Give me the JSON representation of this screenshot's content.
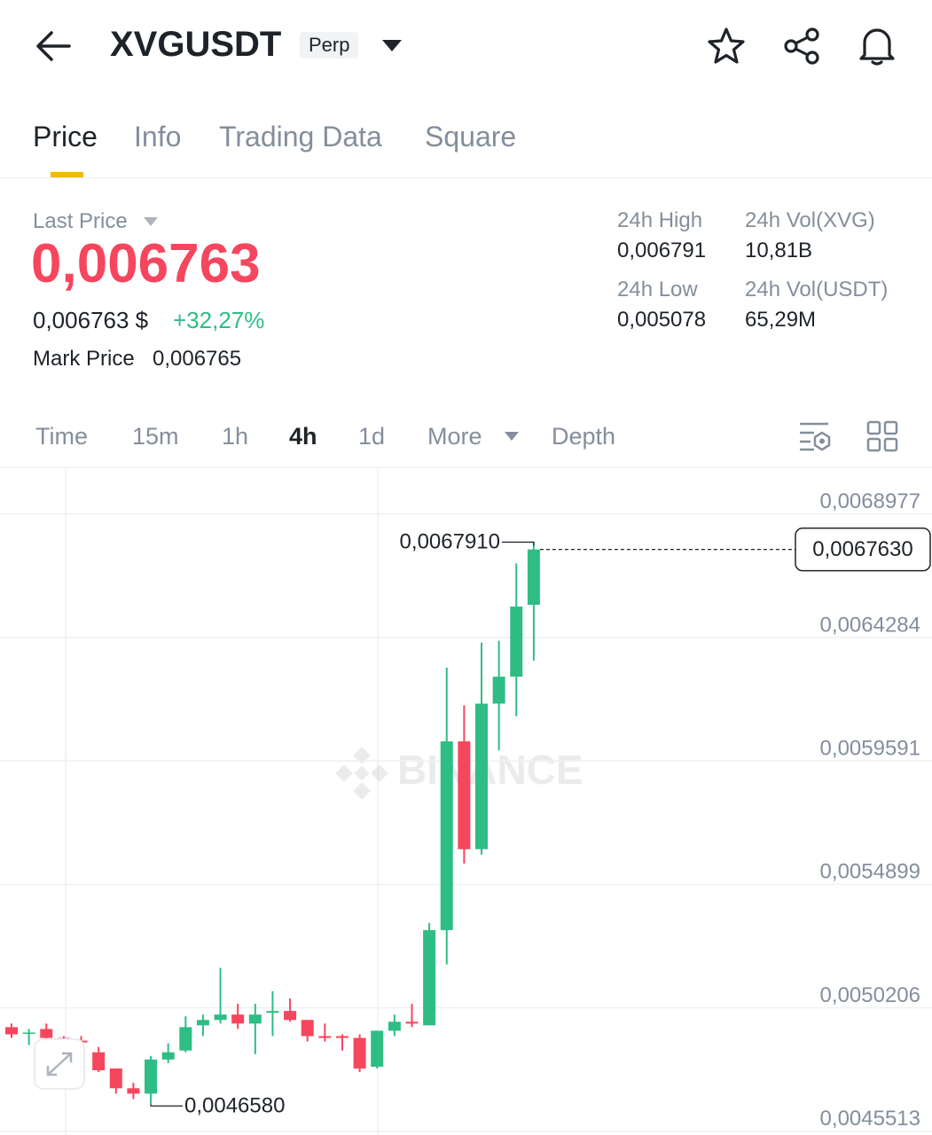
{
  "header": {
    "symbol": "XVGUSDT",
    "badge": "Perp"
  },
  "tabs": [
    "Price",
    "Info",
    "Trading Data",
    "Square"
  ],
  "price": {
    "last_price_label": "Last Price",
    "last_price": "0,006763",
    "usd_price": "0,006763 $",
    "change": "+32,27%",
    "mark_price_label": "Mark Price",
    "mark_price": "0,006765"
  },
  "stats": [
    {
      "label": "24h High",
      "value": "0,006791"
    },
    {
      "label": "24h Vol(XVG)",
      "value": "10,81B"
    },
    {
      "label": "24h Low",
      "value": "0,005078"
    },
    {
      "label": "24h Vol(USDT)",
      "value": "65,29M"
    }
  ],
  "intervals": [
    "Time",
    "15m",
    "1h",
    "4h",
    "1d",
    "More",
    "Depth"
  ],
  "chart_data": {
    "type": "candlestick",
    "watermark": "BINANCE",
    "up_color": "#2ebd85",
    "down_color": "#f6465d",
    "ylim": [
      0.0045374,
      0.0070719
    ],
    "yticks": [
      {
        "value": 0.0068977,
        "label": "0,0068977"
      },
      {
        "value": 0.0064284,
        "label": "0,0064284"
      },
      {
        "value": 0.0059591,
        "label": "0,0059591"
      },
      {
        "value": 0.0054899,
        "label": "0,0054899"
      },
      {
        "value": 0.0050206,
        "label": "0,0050206"
      },
      {
        "value": 0.0045513,
        "label": "0,0045513"
      }
    ],
    "grid": true,
    "open": [
      0.0049473,
      0.0049234,
      0.0049405,
      0.0049063,
      0.0048961,
      0.0048517,
      0.0047902,
      0.0047151,
      0.0046946,
      0.0048244,
      0.0048585,
      0.0049542,
      0.0049747,
      0.0049952,
      0.004961,
      0.005002,
      0.0050088,
      0.0049747,
      0.0049132,
      0.0049132,
      0.0049063,
      0.004797,
      0.0049337,
      0.0049678,
      0.0049542,
      0.0053162,
      0.0060335,
      0.0056237,
      0.006177,
      0.0062795,
      0.0065527
    ],
    "high": [
      0.004961,
      0.0049405,
      0.004961,
      0.0049132,
      0.0049132,
      0.0048722,
      0.0047902,
      0.0047356,
      0.004838,
      0.0048858,
      0.0049883,
      0.0049952,
      0.0051728,
      0.0050361,
      0.0050361,
      0.005084,
      0.0050566,
      0.0049747,
      0.004961,
      0.00492,
      0.00492,
      0.0049337,
      0.0049952,
      0.0050361,
      0.0053436,
      0.0063136,
      0.0061702,
      0.0064093,
      0.0064161,
      0.0067098,
      0.006791
    ],
    "low": [
      0.0049063,
      0.004879,
      0.0048858,
      0.004879,
      0.0048449,
      0.0047766,
      0.0046946,
      0.0046741,
      0.004658,
      0.0048107,
      0.0048517,
      0.0049132,
      0.004961,
      0.0049405,
      0.0048449,
      0.0049132,
      0.0049678,
      0.0048927,
      0.0048927,
      0.0048585,
      0.0047766,
      0.0047902,
      0.0049132,
      0.0049473,
      0.0049542,
      0.0051864,
      0.005569,
      0.0056031,
      0.0059994,
      0.0061292,
      0.0063409
    ],
    "close": [
      0.00492,
      0.0049268,
      0.0049063,
      0.0048858,
      0.0048893,
      0.0047834,
      0.0047151,
      0.0046946,
      0.0048244,
      0.0048517,
      0.0049473,
      0.0049747,
      0.0049952,
      0.004961,
      0.0049952,
      0.0050088,
      0.0049747,
      0.0049132,
      0.0049063,
      0.0049063,
      0.0047902,
      0.0049337,
      0.0049678,
      0.004961,
      0.0053162,
      0.0060335,
      0.0056237,
      0.006177,
      0.0062795,
      0.0065459,
      0.006763
    ],
    "high_annotation": {
      "value": 0.006791,
      "label": "0,0067910"
    },
    "low_annotation": {
      "value": 0.004658,
      "label": "0,0046580"
    },
    "last_price_line": {
      "value": 0.006763,
      "label": "0,0067630"
    }
  }
}
